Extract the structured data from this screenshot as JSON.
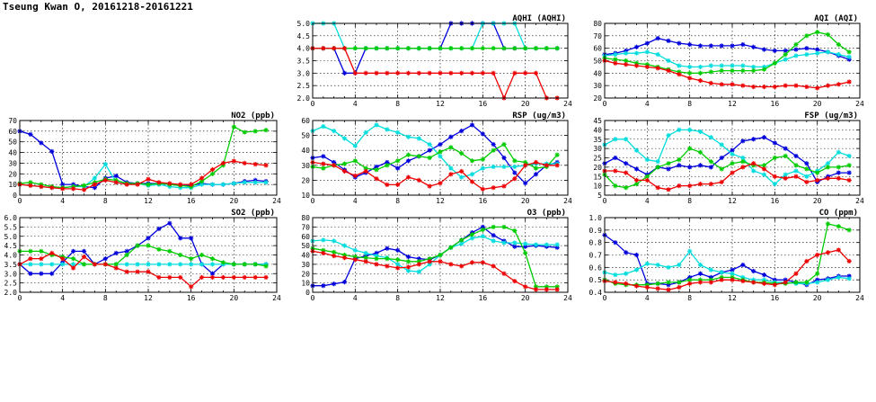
{
  "header": {
    "title": "Tseung Kwan O, 20161218-20161221"
  },
  "series_colors": [
    "#0000dd",
    "#00dddd",
    "#00cc00",
    "#ee0000"
  ],
  "chart_data": [
    {
      "id": "aqhi",
      "type": "line",
      "title": "AQHI (AQHI)",
      "xlim": [
        0,
        24
      ],
      "ylim": [
        2.0,
        5.0
      ],
      "xticks": [
        "0",
        "4",
        "8",
        "12",
        "16",
        "20",
        "24"
      ],
      "yticks": [
        "2.0",
        "2.5",
        "3.0",
        "3.5",
        "4.0",
        "4.5",
        "5.0"
      ],
      "grid": true,
      "series": [
        {
          "color": "#0000dd",
          "values": [
            4,
            4,
            4,
            3,
            3,
            4,
            4,
            4,
            4,
            4,
            4,
            4,
            4,
            5,
            5,
            5,
            5,
            5,
            4,
            4,
            4,
            4,
            4,
            4
          ]
        },
        {
          "color": "#00dddd",
          "values": [
            5,
            5,
            5,
            4,
            4,
            4,
            4,
            4,
            4,
            4,
            4,
            4,
            4,
            4,
            4,
            4,
            5,
            5,
            5,
            5,
            4,
            4,
            4,
            4
          ]
        },
        {
          "color": "#00cc00",
          "values": [
            4,
            4,
            4,
            4,
            4,
            4,
            4,
            4,
            4,
            4,
            4,
            4,
            4,
            4,
            4,
            4,
            4,
            4,
            4,
            4,
            4,
            4,
            4,
            4
          ]
        },
        {
          "color": "#ee0000",
          "values": [
            4,
            4,
            4,
            4,
            3,
            3,
            3,
            3,
            3,
            3,
            3,
            3,
            3,
            3,
            3,
            3,
            3,
            3,
            2,
            3,
            3,
            3,
            2,
            2
          ]
        }
      ]
    },
    {
      "id": "aqi",
      "type": "line",
      "title": "AQI (AQI)",
      "xlim": [
        0,
        24
      ],
      "ylim": [
        20,
        80
      ],
      "xticks": [
        "0",
        "4",
        "8",
        "12",
        "16",
        "20",
        "24"
      ],
      "yticks": [
        "20",
        "30",
        "40",
        "50",
        "60",
        "70",
        "80"
      ],
      "grid": true,
      "series": [
        {
          "color": "#0000dd",
          "values": [
            55,
            56,
            58,
            61,
            64,
            68,
            66,
            64,
            63,
            62,
            62,
            62,
            62,
            63,
            61,
            59,
            58,
            58,
            59,
            60,
            59,
            57,
            54,
            51
          ]
        },
        {
          "color": "#00dddd",
          "values": [
            54,
            55,
            56,
            56,
            57,
            55,
            50,
            46,
            45,
            45,
            46,
            46,
            46,
            46,
            45,
            45,
            48,
            51,
            54,
            55,
            56,
            57,
            55,
            53
          ]
        },
        {
          "color": "#00cc00",
          "values": [
            52,
            51,
            50,
            48,
            47,
            45,
            43,
            41,
            40,
            40,
            41,
            42,
            42,
            42,
            42,
            43,
            48,
            55,
            63,
            70,
            73,
            71,
            63,
            57
          ]
        },
        {
          "color": "#ee0000",
          "values": [
            50,
            48,
            47,
            46,
            45,
            44,
            42,
            39,
            36,
            34,
            32,
            31,
            31,
            30,
            29,
            29,
            29,
            30,
            30,
            29,
            28,
            30,
            31,
            33
          ]
        }
      ]
    },
    {
      "id": "no2",
      "type": "line",
      "title": "NO2 (ppb)",
      "xlim": [
        0,
        24
      ],
      "ylim": [
        0,
        70
      ],
      "xticks": [
        "0",
        "4",
        "8",
        "12",
        "16",
        "20",
        "24"
      ],
      "yticks": [
        "0",
        "10",
        "20",
        "30",
        "40",
        "50",
        "60",
        "70"
      ],
      "grid": true,
      "series": [
        {
          "color": "#0000dd",
          "values": [
            60,
            57,
            49,
            41,
            10,
            10,
            8,
            7,
            16,
            18,
            12,
            11,
            11,
            11,
            10,
            9,
            9,
            11,
            10,
            10,
            11,
            13,
            14,
            13
          ]
        },
        {
          "color": "#00dddd",
          "values": [
            10,
            9,
            8,
            7,
            7,
            8,
            8,
            16,
            29,
            12,
            11,
            11,
            9,
            10,
            8,
            7,
            7,
            10,
            10,
            10,
            11,
            12,
            12,
            12
          ]
        },
        {
          "color": "#00cc00",
          "values": [
            11,
            12,
            10,
            8,
            7,
            8,
            9,
            12,
            15,
            14,
            11,
            11,
            10,
            11,
            10,
            9,
            8,
            13,
            20,
            28,
            64,
            59,
            60,
            61
          ]
        },
        {
          "color": "#ee0000",
          "values": [
            10,
            9,
            8,
            7,
            6,
            6,
            5,
            10,
            14,
            12,
            10,
            10,
            15,
            12,
            11,
            10,
            10,
            16,
            24,
            30,
            32,
            30,
            29,
            28
          ]
        }
      ]
    },
    {
      "id": "rsp",
      "type": "line",
      "title": "RSP (ug/m3)",
      "xlim": [
        0,
        24
      ],
      "ylim": [
        10,
        60
      ],
      "xticks": [
        "0",
        "4",
        "8",
        "12",
        "16",
        "20",
        "24"
      ],
      "yticks": [
        "10",
        "20",
        "30",
        "40",
        "50",
        "60"
      ],
      "grid": true,
      "series": [
        {
          "color": "#0000dd",
          "values": [
            35,
            36,
            32,
            27,
            22,
            25,
            29,
            32,
            28,
            33,
            36,
            40,
            44,
            49,
            53,
            57,
            51,
            44,
            35,
            25,
            18,
            24,
            30,
            32
          ]
        },
        {
          "color": "#00dddd",
          "values": [
            53,
            56,
            53,
            48,
            43,
            52,
            57,
            54,
            52,
            49,
            48,
            44,
            36,
            28,
            22,
            24,
            28,
            29,
            29,
            29,
            30,
            31,
            31,
            31
          ]
        },
        {
          "color": "#00cc00",
          "values": [
            29,
            28,
            30,
            31,
            33,
            28,
            27,
            30,
            33,
            37,
            36,
            35,
            39,
            42,
            38,
            33,
            34,
            40,
            44,
            33,
            32,
            28,
            29,
            37
          ]
        },
        {
          "color": "#ee0000",
          "values": [
            32,
            31,
            30,
            26,
            23,
            26,
            21,
            17,
            17,
            22,
            20,
            16,
            18,
            24,
            26,
            19,
            14,
            15,
            16,
            21,
            30,
            32,
            30,
            30
          ]
        }
      ]
    },
    {
      "id": "fsp",
      "type": "line",
      "title": "FSP (ug/m3)",
      "xlim": [
        0,
        24
      ],
      "ylim": [
        5,
        45
      ],
      "xticks": [
        "0",
        "4",
        "8",
        "12",
        "16",
        "20",
        "24"
      ],
      "yticks": [
        "5",
        "10",
        "15",
        "20",
        "25",
        "30",
        "35",
        "40",
        "45"
      ],
      "grid": true,
      "series": [
        {
          "color": "#0000dd",
          "values": [
            22,
            25,
            22,
            19,
            16,
            20,
            19,
            21,
            20,
            21,
            20,
            25,
            29,
            34,
            35,
            36,
            33,
            30,
            26,
            22,
            12,
            15,
            17,
            17
          ]
        },
        {
          "color": "#00dddd",
          "values": [
            32,
            35,
            35,
            29,
            24,
            23,
            37,
            40,
            40,
            39,
            36,
            32,
            27,
            25,
            18,
            16,
            11,
            16,
            18,
            15,
            18,
            22,
            28,
            26
          ]
        },
        {
          "color": "#00cc00",
          "values": [
            16,
            10,
            9,
            11,
            15,
            20,
            22,
            24,
            30,
            28,
            23,
            19,
            22,
            23,
            21,
            21,
            25,
            26,
            21,
            19,
            17,
            20,
            20,
            21
          ]
        },
        {
          "color": "#ee0000",
          "values": [
            18,
            18,
            17,
            13,
            13,
            9,
            8,
            10,
            10,
            11,
            11,
            12,
            17,
            20,
            22,
            19,
            15,
            14,
            15,
            12,
            13,
            14,
            14,
            13
          ]
        }
      ]
    },
    {
      "id": "so2",
      "type": "line",
      "title": "SO2 (ppb)",
      "xlim": [
        0,
        24
      ],
      "ylim": [
        2.0,
        6.0
      ],
      "xticks": [
        "0",
        "4",
        "8",
        "12",
        "16",
        "20",
        "24"
      ],
      "yticks": [
        "2.0",
        "2.5",
        "3.0",
        "3.5",
        "4.0",
        "4.5",
        "5.0",
        "5.5",
        "6.0"
      ],
      "grid": true,
      "series": [
        {
          "color": "#0000dd",
          "values": [
            3.5,
            3.0,
            3.0,
            3.0,
            3.6,
            4.2,
            4.2,
            3.5,
            3.8,
            4.1,
            4.2,
            4.5,
            4.9,
            5.4,
            5.7,
            4.9,
            4.9,
            3.5,
            3.0,
            3.5,
            3.5,
            3.5,
            3.5,
            3.5
          ]
        },
        {
          "color": "#00dddd",
          "values": [
            3.5,
            3.5,
            3.5,
            3.5,
            3.5,
            3.5,
            3.5,
            3.5,
            3.5,
            3.5,
            3.5,
            3.5,
            3.5,
            3.5,
            3.5,
            3.5,
            3.5,
            3.5,
            3.5,
            3.5,
            3.5,
            3.5,
            3.5,
            3.5
          ]
        },
        {
          "color": "#00cc00",
          "values": [
            4.2,
            4.2,
            4.2,
            4.0,
            3.9,
            3.8,
            3.5,
            3.5,
            3.5,
            3.5,
            4.0,
            4.5,
            4.5,
            4.3,
            4.2,
            4.0,
            3.8,
            4.0,
            3.8,
            3.6,
            3.5,
            3.5,
            3.5,
            3.4
          ]
        },
        {
          "color": "#ee0000",
          "values": [
            3.5,
            3.8,
            3.8,
            4.1,
            3.8,
            3.3,
            3.9,
            3.5,
            3.5,
            3.3,
            3.1,
            3.1,
            3.1,
            2.8,
            2.8,
            2.8,
            2.3,
            2.8,
            2.8,
            2.8,
            2.8,
            2.8,
            2.8,
            2.8
          ]
        }
      ]
    },
    {
      "id": "o3",
      "type": "line",
      "title": "O3 (ppb)",
      "xlim": [
        0,
        24
      ],
      "ylim": [
        0,
        80
      ],
      "xticks": [
        "0",
        "4",
        "8",
        "12",
        "16",
        "20",
        "24"
      ],
      "yticks": [
        "0",
        "10",
        "20",
        "30",
        "40",
        "50",
        "60",
        "70",
        "80"
      ],
      "grid": true,
      "series": [
        {
          "color": "#0000dd",
          "values": [
            7,
            7,
            9,
            11,
            36,
            39,
            42,
            47,
            45,
            38,
            36,
            35,
            40,
            48,
            56,
            64,
            70,
            61,
            55,
            49,
            49,
            50,
            49,
            48
          ]
        },
        {
          "color": "#00dddd",
          "values": [
            55,
            56,
            55,
            50,
            45,
            42,
            39,
            37,
            30,
            23,
            22,
            30,
            40,
            48,
            52,
            58,
            60,
            55,
            53,
            53,
            52,
            51,
            51,
            51
          ]
        },
        {
          "color": "#00cc00",
          "values": [
            47,
            45,
            43,
            40,
            38,
            37,
            36,
            36,
            35,
            33,
            33,
            36,
            40,
            48,
            56,
            62,
            67,
            70,
            70,
            66,
            42,
            6,
            6,
            6
          ]
        },
        {
          "color": "#ee0000",
          "values": [
            44,
            42,
            39,
            37,
            35,
            33,
            30,
            28,
            26,
            27,
            30,
            33,
            33,
            30,
            28,
            32,
            32,
            28,
            20,
            12,
            6,
            3,
            3,
            3
          ]
        }
      ]
    },
    {
      "id": "co",
      "type": "line",
      "title": "CO (ppm)",
      "xlim": [
        0,
        24
      ],
      "ylim": [
        0.4,
        1.0
      ],
      "xticks": [
        "0",
        "4",
        "8",
        "12",
        "16",
        "20",
        "24"
      ],
      "yticks": [
        "0.4",
        "0.5",
        "0.6",
        "0.7",
        "0.8",
        "0.9",
        "1.0"
      ],
      "grid": true,
      "series": [
        {
          "color": "#0000dd",
          "values": [
            0.86,
            0.8,
            0.72,
            0.7,
            0.47,
            0.47,
            0.46,
            0.48,
            0.52,
            0.55,
            0.52,
            0.56,
            0.58,
            0.62,
            0.57,
            0.54,
            0.5,
            0.5,
            0.48,
            0.46,
            0.5,
            0.51,
            0.53,
            0.53
          ]
        },
        {
          "color": "#00dddd",
          "values": [
            0.56,
            0.54,
            0.55,
            0.58,
            0.63,
            0.62,
            0.6,
            0.62,
            0.73,
            0.62,
            0.58,
            0.56,
            0.55,
            0.52,
            0.5,
            0.5,
            0.48,
            0.48,
            0.47,
            0.47,
            0.48,
            0.5,
            0.52,
            0.51
          ]
        },
        {
          "color": "#00cc00",
          "values": [
            0.5,
            0.47,
            0.46,
            0.46,
            0.46,
            0.47,
            0.48,
            0.48,
            0.5,
            0.5,
            0.5,
            0.52,
            0.52,
            0.5,
            0.48,
            0.48,
            0.47,
            0.47,
            0.48,
            0.48,
            0.55,
            0.95,
            0.93,
            0.9
          ]
        },
        {
          "color": "#ee0000",
          "values": [
            0.49,
            0.48,
            0.47,
            0.45,
            0.44,
            0.43,
            0.42,
            0.44,
            0.47,
            0.48,
            0.48,
            0.5,
            0.5,
            0.49,
            0.48,
            0.47,
            0.46,
            0.48,
            0.55,
            0.65,
            0.7,
            0.72,
            0.74,
            0.65
          ]
        }
      ]
    }
  ]
}
